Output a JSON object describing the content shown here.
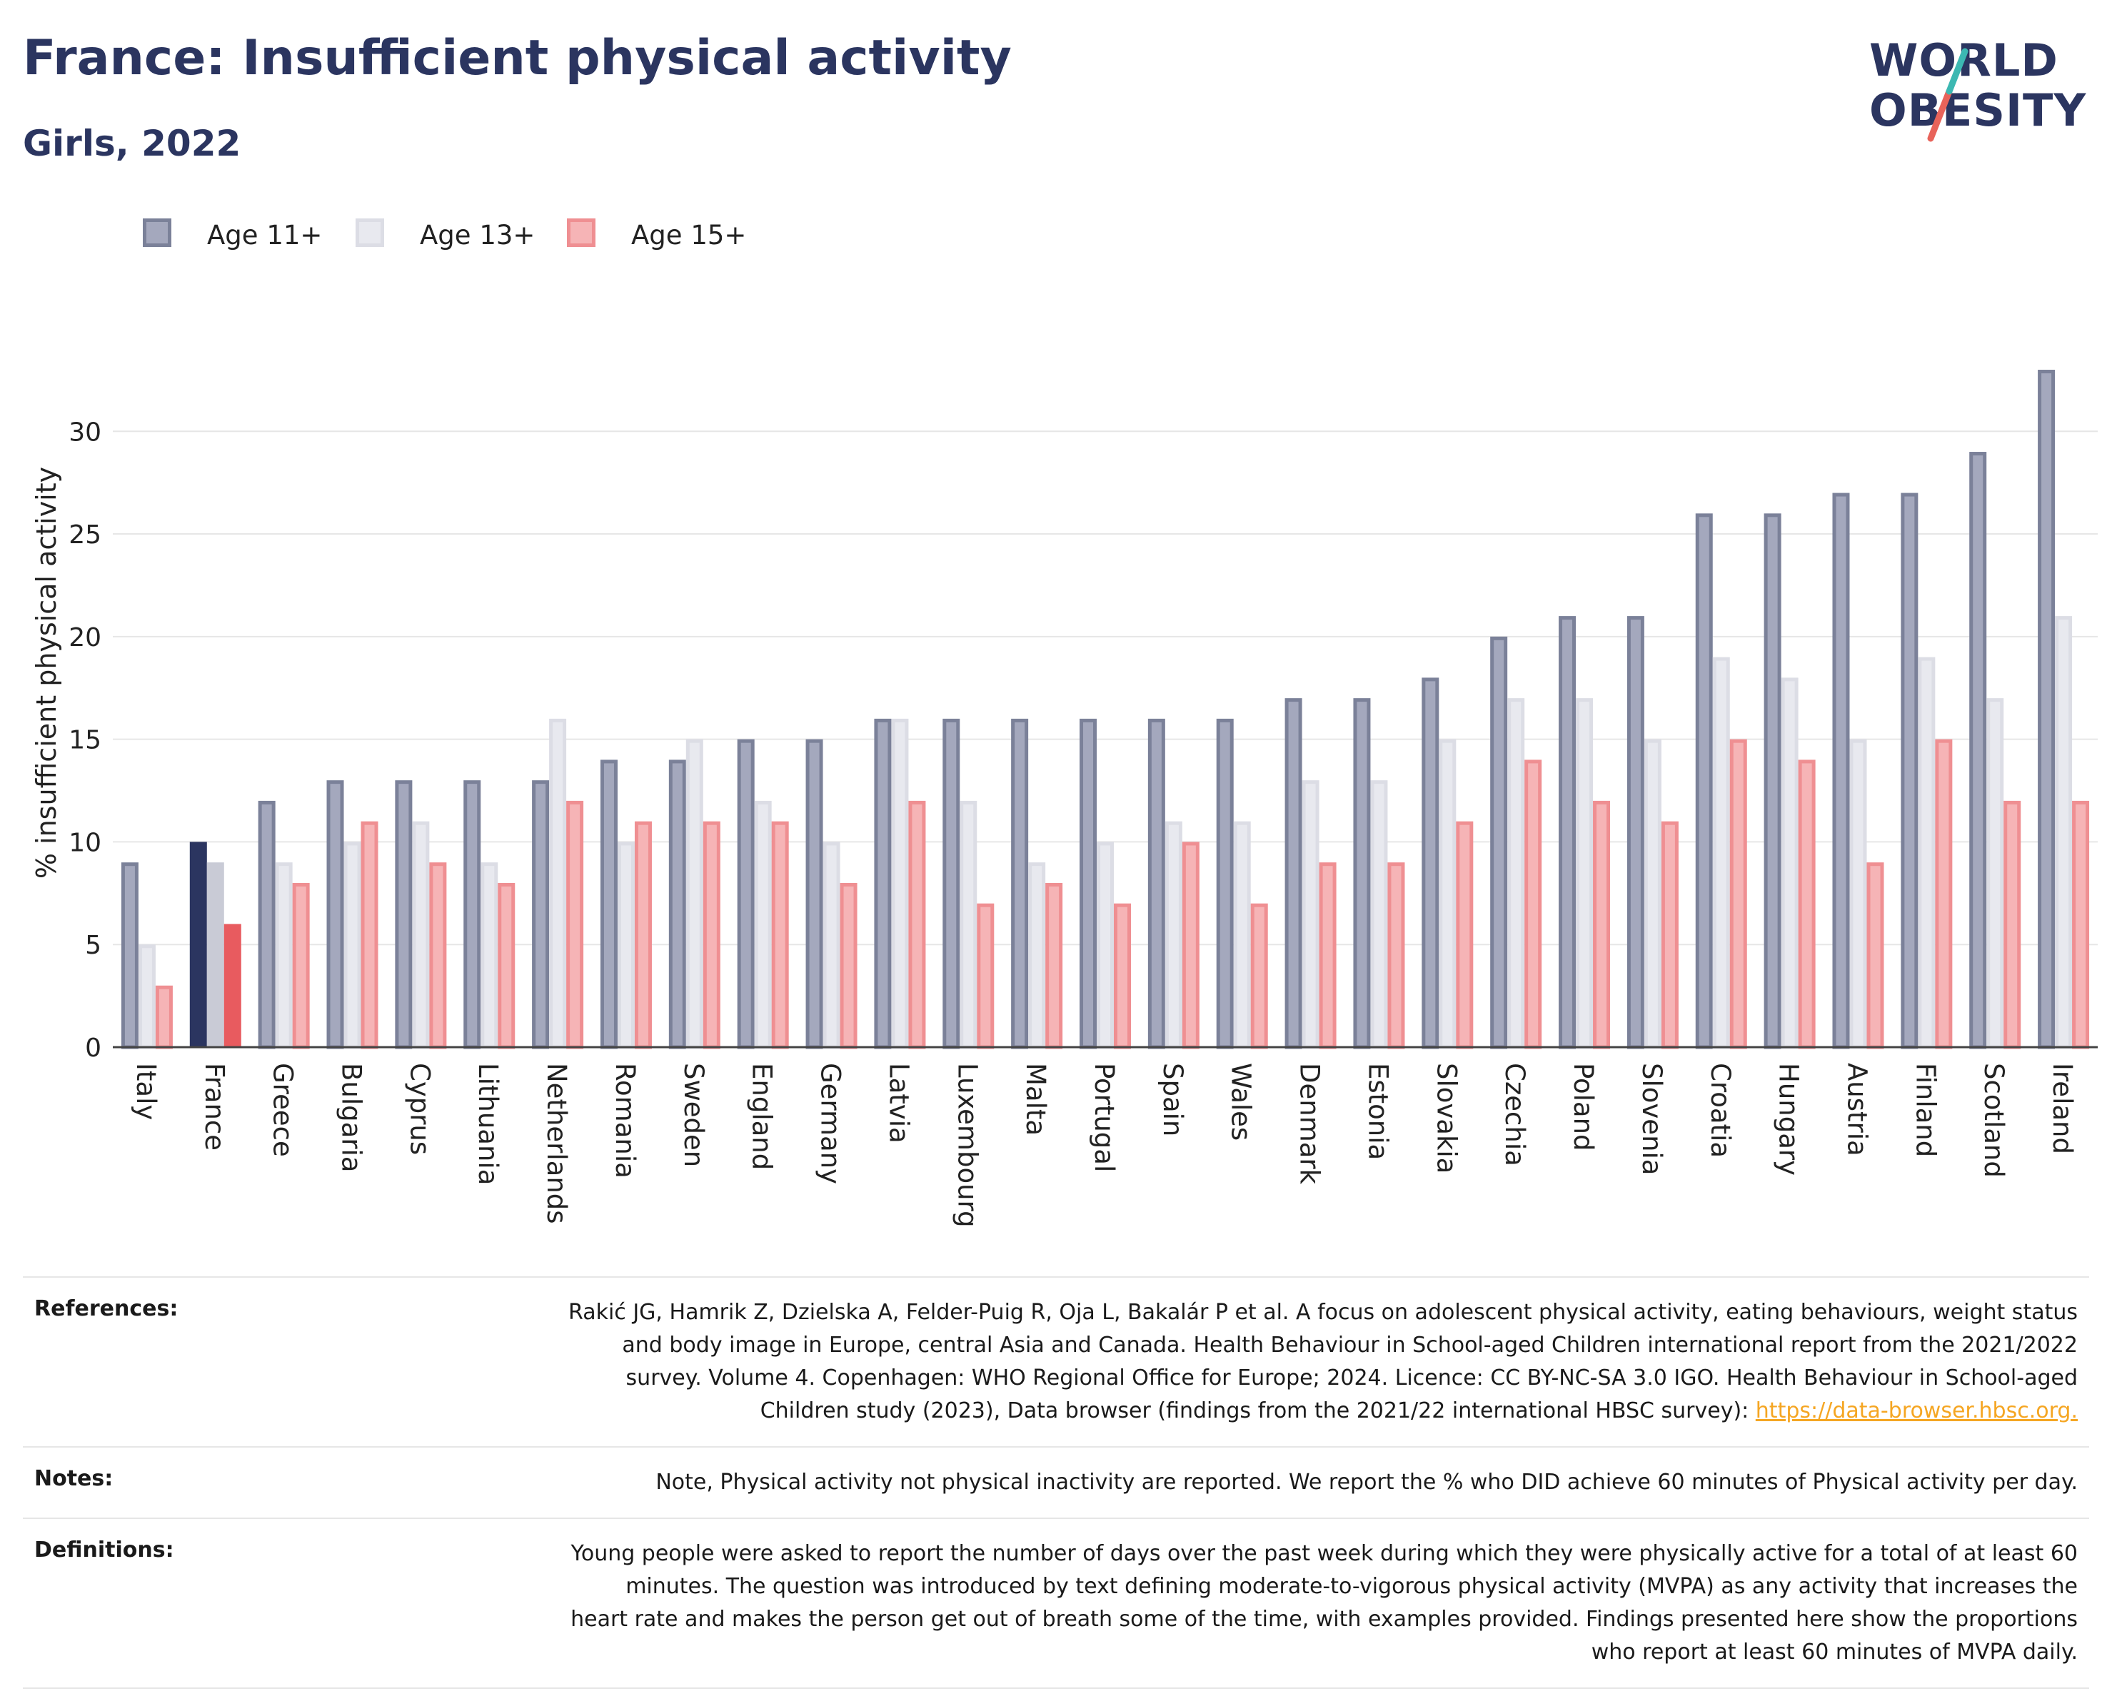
{
  "header": {
    "title": "France: Insufficient physical activity",
    "subtitle": "Girls, 2022"
  },
  "logo": {
    "line1": "WORLD",
    "line2": "OBESITY"
  },
  "colors": {
    "age11": "#a4a8bd",
    "age11_stroke": "#7b8199",
    "age13": "#e8e9ef",
    "age13_stroke": "#dcdde5",
    "age15": "#f6b4b6",
    "age15_stroke": "#ef8f92",
    "france_age11": "#2b3560",
    "france_age13": "#c9cbd6",
    "france_age15": "#e85b5f",
    "brand": "#2b3560",
    "link": "#f5a623"
  },
  "chart_data": {
    "type": "bar",
    "ylabel": "% insufficient physical activity",
    "xlabel": "",
    "ylim": [
      0,
      33
    ],
    "yticks": [
      0,
      5,
      10,
      15,
      20,
      25,
      30
    ],
    "grid": true,
    "legend_position": "top-left",
    "highlight": "France",
    "categories": [
      "Italy",
      "France",
      "Greece",
      "Bulgaria",
      "Cyprus",
      "Lithuania",
      "Netherlands",
      "Romania",
      "Sweden",
      "England",
      "Germany",
      "Latvia",
      "Luxembourg",
      "Malta",
      "Portugal",
      "Spain",
      "Wales",
      "Denmark",
      "Estonia",
      "Slovakia",
      "Czechia",
      "Poland",
      "Slovenia",
      "Croatia",
      "Hungary",
      "Austria",
      "Finland",
      "Scotland",
      "Ireland"
    ],
    "series": [
      {
        "name": "Age 11+",
        "values": [
          9,
          10,
          12,
          13,
          13,
          13,
          13,
          14,
          14,
          15,
          15,
          16,
          16,
          16,
          16,
          16,
          16,
          17,
          17,
          18,
          20,
          21,
          21,
          26,
          26,
          27,
          27,
          29,
          33
        ]
      },
      {
        "name": "Age 13+",
        "values": [
          5,
          9,
          9,
          10,
          11,
          9,
          16,
          10,
          15,
          12,
          10,
          16,
          12,
          9,
          10,
          11,
          11,
          13,
          13,
          15,
          17,
          17,
          15,
          19,
          18,
          15,
          19,
          17,
          21
        ]
      },
      {
        "name": "Age 15+",
        "values": [
          3,
          6,
          8,
          11,
          9,
          8,
          12,
          11,
          11,
          11,
          8,
          12,
          7,
          8,
          7,
          10,
          7,
          9,
          9,
          11,
          14,
          12,
          11,
          15,
          14,
          9,
          15,
          12,
          12
        ]
      }
    ]
  },
  "footer": {
    "references_label": "References:",
    "references_text": "Rakić JG, Hamrik Z, Dzielska A, Felder-Puig R, Oja L, Bakalár P et al. A focus on adolescent physical activity, eating behaviours, weight status and body image in Europe, central Asia and Canada. Health Behaviour in School-aged Children international report from the 2021/2022 survey. Volume 4. Copenhagen: WHO Regional Office for Europe; 2024. Licence: CC BY-NC-SA 3.0 IGO. Health Behaviour in School-aged Children study (2023), Data browser (findings from the 2021/22 international HBSC survey): ",
    "references_link": "https://data-browser.hbsc.org.",
    "notes_label": "Notes:",
    "notes_text": "Note, Physical activity not physical inactivity are reported. We report the % who DID achieve 60 minutes of Physical activity per day.",
    "definitions_label": "Definitions:",
    "definitions_text": "Young people were asked to report the number of days over the past week during which they were physically active for a total of at least 60 minutes. The question was introduced by text defining moderate-to-vigorous physical activity (MVPA) as any activity that increases the heart rate and makes the person get out of breath some of the time, with examples provided. Findings presented here show the proportions who report at least 60 minutes of MVPA daily."
  }
}
